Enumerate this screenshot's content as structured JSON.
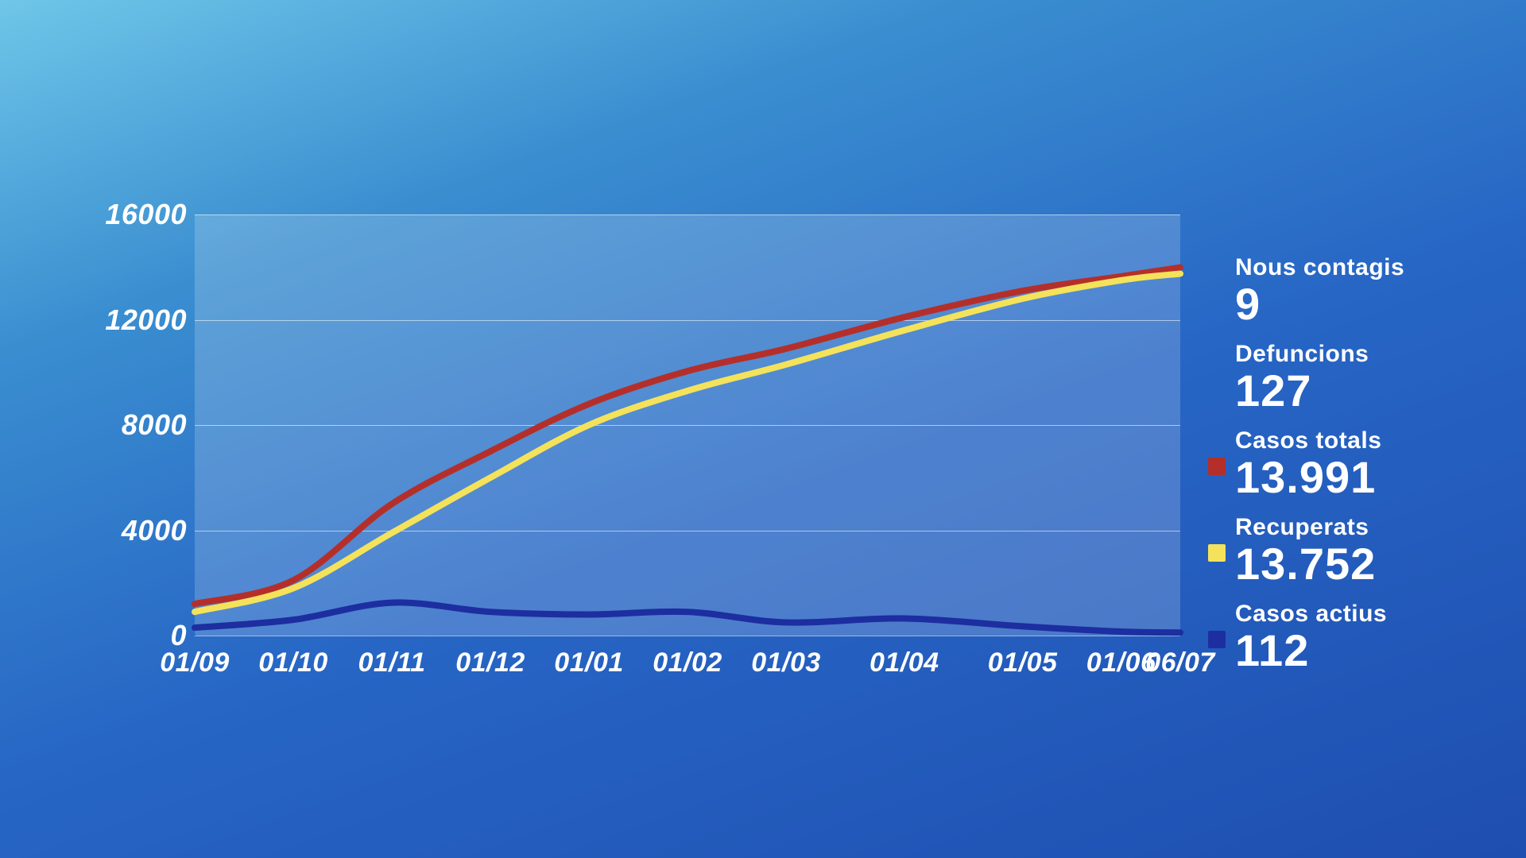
{
  "background": {
    "gradient_from": "#6ec6e8",
    "gradient_to": "#1e4eb0"
  },
  "chart": {
    "type": "line",
    "plot_bg": "rgba(255,255,255,0.18)",
    "grid_color": "rgba(255,255,255,0.55)",
    "ylim": [
      0,
      16000
    ],
    "ytick_step": 4000,
    "y_ticks": [
      "0",
      "4000",
      "8000",
      "12000",
      "16000"
    ],
    "x_labels": [
      "01/09",
      "01/10",
      "01/11",
      "01/12",
      "01/01",
      "01/02",
      "01/03",
      "01/04",
      "01/05",
      "01/06",
      "06/07"
    ],
    "x_points": [
      0,
      1,
      2,
      3,
      4,
      5,
      6,
      7,
      8,
      9,
      10
    ],
    "x_domain": [
      0,
      10
    ],
    "line_width": 8,
    "tick_fontsize": 36,
    "tick_color": "#ffffff",
    "tick_style": "italic",
    "series": [
      {
        "key": "casos_totals",
        "color": "#b52f2a",
        "values": [
          1200,
          2100,
          5000,
          7000,
          8800,
          10050,
          10900,
          12100,
          13100,
          13650,
          13991
        ]
      },
      {
        "key": "recuperats",
        "color": "#f4e25a",
        "values": [
          900,
          1800,
          3900,
          6000,
          8000,
          9300,
          10300,
          11600,
          12800,
          13500,
          13752
        ]
      },
      {
        "key": "casos_actius",
        "color": "#1d2ea0",
        "values": [
          300,
          600,
          1250,
          900,
          800,
          900,
          500,
          650,
          350,
          150,
          112
        ]
      }
    ]
  },
  "legend": {
    "items": [
      {
        "label": "Nous contagis",
        "value": "9",
        "swatch": null
      },
      {
        "label": "Defuncions",
        "value": "127",
        "swatch": null
      },
      {
        "label": "Casos totals",
        "value": "13.991",
        "swatch": "#b52f2a"
      },
      {
        "label": "Recuperats",
        "value": "13.752",
        "swatch": "#f4e25a"
      },
      {
        "label": "Casos actius",
        "value": "112",
        "swatch": "#1d2ea0"
      }
    ],
    "label_fontsize": 30,
    "value_fontsize": 56,
    "text_color": "#ffffff"
  }
}
